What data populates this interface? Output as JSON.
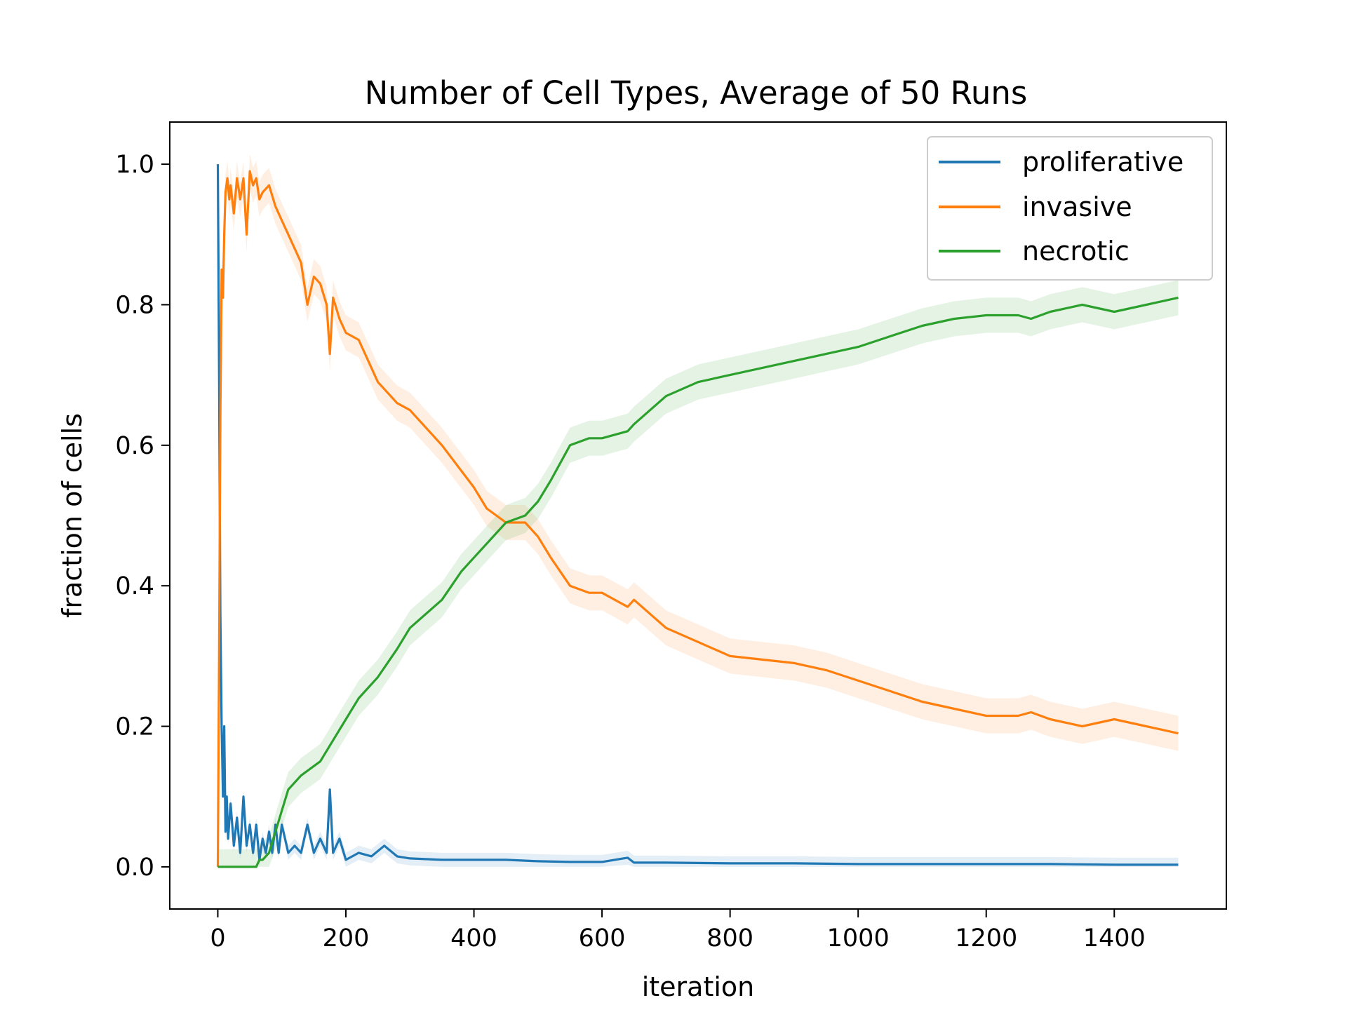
{
  "chart_data": {
    "type": "line",
    "title": "Number of Cell Types, Average of 50 Runs",
    "xlabel": "iteration",
    "ylabel": "fraction of cells",
    "xlim": [
      -75,
      1575
    ],
    "ylim": [
      -0.06,
      1.06
    ],
    "xticks": [
      0,
      200,
      400,
      600,
      800,
      1000,
      1200,
      1400
    ],
    "xtick_labels": [
      "0",
      "200",
      "400",
      "600",
      "800",
      "1000",
      "1200",
      "1400"
    ],
    "yticks": [
      0.0,
      0.2,
      0.4,
      0.6,
      0.8,
      1.0
    ],
    "ytick_labels": [
      "0.0",
      "0.2",
      "0.4",
      "0.6",
      "0.8",
      "1.0"
    ],
    "grid": false,
    "legend_position": "top-right",
    "shaded_band": "mean ± spread (light fill around each line)",
    "series": [
      {
        "name": "proliferative",
        "color": "#1f77b4",
        "band_halfwidth": 0.01,
        "x": [
          0,
          2,
          4,
          6,
          8,
          10,
          12,
          14,
          16,
          20,
          25,
          30,
          35,
          40,
          45,
          50,
          55,
          60,
          65,
          70,
          75,
          80,
          85,
          90,
          95,
          100,
          110,
          120,
          130,
          140,
          150,
          160,
          170,
          175,
          180,
          190,
          200,
          220,
          240,
          260,
          280,
          300,
          350,
          400,
          450,
          500,
          550,
          600,
          640,
          650,
          700,
          800,
          900,
          1000,
          1100,
          1200,
          1300,
          1400,
          1500
        ],
        "y": [
          1.0,
          0.7,
          0.36,
          0.2,
          0.1,
          0.2,
          0.05,
          0.1,
          0.04,
          0.09,
          0.03,
          0.07,
          0.02,
          0.1,
          0.03,
          0.06,
          0.02,
          0.06,
          0.01,
          0.04,
          0.02,
          0.05,
          0.02,
          0.06,
          0.02,
          0.06,
          0.02,
          0.03,
          0.02,
          0.06,
          0.02,
          0.04,
          0.02,
          0.11,
          0.02,
          0.04,
          0.01,
          0.02,
          0.015,
          0.03,
          0.015,
          0.012,
          0.01,
          0.01,
          0.01,
          0.008,
          0.007,
          0.007,
          0.013,
          0.006,
          0.006,
          0.005,
          0.005,
          0.004,
          0.004,
          0.004,
          0.004,
          0.003,
          0.003
        ]
      },
      {
        "name": "invasive",
        "color": "#ff7f0e",
        "band_halfwidth": 0.025,
        "x": [
          0,
          2,
          4,
          6,
          8,
          10,
          12,
          15,
          18,
          20,
          25,
          30,
          35,
          40,
          45,
          50,
          55,
          60,
          65,
          70,
          80,
          90,
          100,
          110,
          120,
          130,
          140,
          150,
          160,
          170,
          175,
          180,
          190,
          200,
          220,
          250,
          280,
          300,
          350,
          400,
          420,
          450,
          480,
          500,
          520,
          550,
          580,
          600,
          640,
          650,
          700,
          750,
          800,
          850,
          900,
          950,
          1000,
          1050,
          1100,
          1150,
          1200,
          1250,
          1270,
          1300,
          1350,
          1400,
          1450,
          1500
        ],
        "y": [
          0.0,
          0.3,
          0.64,
          0.85,
          0.81,
          0.9,
          0.96,
          0.98,
          0.95,
          0.97,
          0.93,
          0.98,
          0.95,
          0.98,
          0.9,
          0.99,
          0.97,
          0.98,
          0.95,
          0.96,
          0.97,
          0.94,
          0.92,
          0.9,
          0.88,
          0.86,
          0.8,
          0.84,
          0.83,
          0.8,
          0.73,
          0.81,
          0.78,
          0.76,
          0.75,
          0.69,
          0.66,
          0.65,
          0.6,
          0.54,
          0.51,
          0.49,
          0.49,
          0.47,
          0.44,
          0.4,
          0.39,
          0.39,
          0.37,
          0.38,
          0.34,
          0.32,
          0.3,
          0.295,
          0.29,
          0.28,
          0.265,
          0.25,
          0.235,
          0.225,
          0.215,
          0.215,
          0.22,
          0.21,
          0.2,
          0.21,
          0.2,
          0.19
        ]
      },
      {
        "name": "necrotic",
        "color": "#2ca02c",
        "band_halfwidth": 0.025,
        "x": [
          0,
          60,
          65,
          70,
          80,
          90,
          100,
          110,
          130,
          160,
          180,
          200,
          220,
          250,
          280,
          300,
          350,
          380,
          400,
          420,
          450,
          480,
          500,
          520,
          550,
          580,
          600,
          640,
          650,
          700,
          750,
          800,
          850,
          900,
          950,
          1000,
          1050,
          1100,
          1150,
          1200,
          1250,
          1270,
          1300,
          1350,
          1400,
          1450,
          1500
        ],
        "y": [
          0.0,
          0.0,
          0.01,
          0.01,
          0.02,
          0.05,
          0.08,
          0.11,
          0.13,
          0.15,
          0.18,
          0.21,
          0.24,
          0.27,
          0.31,
          0.34,
          0.38,
          0.42,
          0.44,
          0.46,
          0.49,
          0.5,
          0.52,
          0.55,
          0.6,
          0.61,
          0.61,
          0.62,
          0.63,
          0.67,
          0.69,
          0.7,
          0.71,
          0.72,
          0.73,
          0.74,
          0.755,
          0.77,
          0.78,
          0.785,
          0.785,
          0.78,
          0.79,
          0.8,
          0.79,
          0.8,
          0.81
        ]
      }
    ]
  }
}
